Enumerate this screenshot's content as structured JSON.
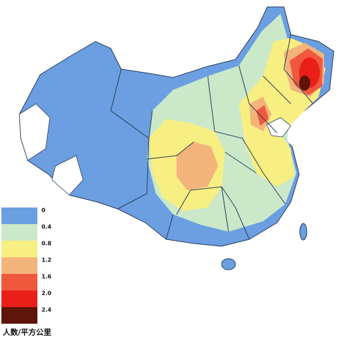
{
  "legend": {
    "title": "人数/平方公里",
    "items": [
      {
        "label": "0",
        "color": "#6b9fe2"
      },
      {
        "label": "0.4",
        "color": "#cbe9c9"
      },
      {
        "label": "0.8",
        "color": "#f8ef82"
      },
      {
        "label": "1.2",
        "color": "#f3b47c"
      },
      {
        "label": "1.6",
        "color": "#f0583e"
      },
      {
        "label": "2.0",
        "color": "#ea1f1a"
      },
      {
        "label": "2.4",
        "color": "#5e1408"
      }
    ]
  }
}
